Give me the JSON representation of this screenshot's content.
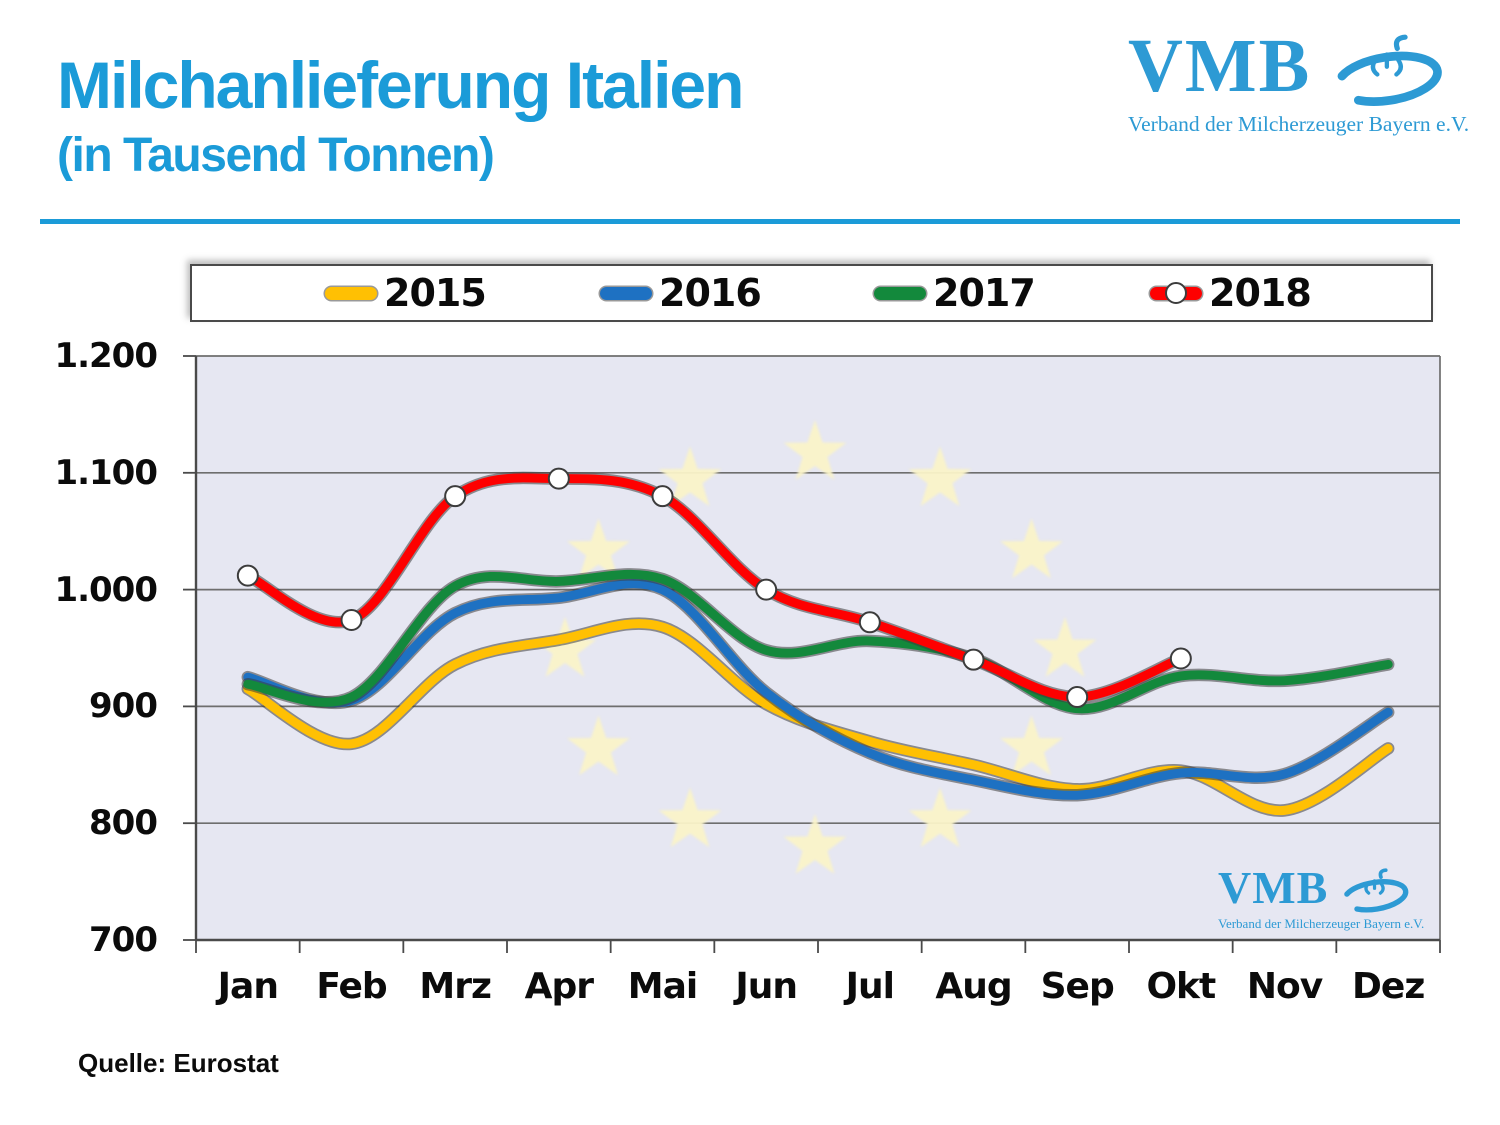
{
  "header": {
    "title": "Milchanlieferung Italien",
    "subtitle": "(in Tausend Tonnen)"
  },
  "logo": {
    "name": "VMB",
    "tagline": "Verband der Milcherzeuger Bayern e.V.",
    "color": "#2D9AD4"
  },
  "source": {
    "label": "Quelle: Eurostat"
  },
  "colors": {
    "title_blue": "#1B9BD8",
    "plot_background": "#E6E7F2",
    "gridline": "#6e6e6e",
    "axis": "#4a4a4a",
    "star_watermark": "#FAF3C8",
    "marker_fill": "#ffffff",
    "marker_stroke": "#3c3c3c"
  },
  "chart_data": {
    "type": "line",
    "title": "Milchanlieferung Italien (in Tausend Tonnen)",
    "categories": [
      "Jan",
      "Feb",
      "Mrz",
      "Apr",
      "Mai",
      "Jun",
      "Jul",
      "Aug",
      "Sep",
      "Okt",
      "Nov",
      "Dez"
    ],
    "series": [
      {
        "name": "2015",
        "color": "#FFC003",
        "marker": "none",
        "values": [
          915,
          868,
          936,
          957,
          968,
          902,
          870,
          850,
          829,
          845,
          811,
          864
        ]
      },
      {
        "name": "2016",
        "color": "#1E71C2",
        "marker": "none",
        "values": [
          925,
          905,
          980,
          993,
          1000,
          912,
          860,
          837,
          824,
          843,
          842,
          895
        ]
      },
      {
        "name": "2017",
        "color": "#13893C",
        "marker": "none",
        "values": [
          919,
          908,
          1003,
          1007,
          1009,
          948,
          956,
          941,
          898,
          926,
          922,
          936
        ]
      },
      {
        "name": "2018",
        "color": "#FE0000",
        "marker": "circle",
        "values": [
          1012,
          974,
          1080,
          1095,
          1080,
          1000,
          972,
          940,
          908,
          941
        ]
      }
    ],
    "ylim": [
      700,
      1200
    ],
    "yticks": [
      1200,
      1100,
      1000,
      900,
      800,
      700
    ],
    "ytick_labels": [
      "1.200",
      "1.100",
      "1.000",
      "900",
      "800",
      "700"
    ],
    "xlabel": "",
    "ylabel": "",
    "grid": "horizontal",
    "legend_position": "top",
    "watermark": "EU flag star circle + VMB logo"
  }
}
